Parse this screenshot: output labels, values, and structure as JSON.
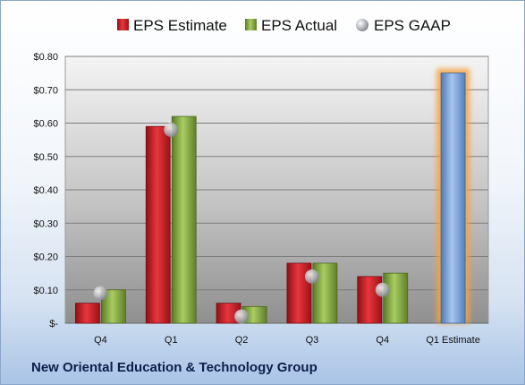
{
  "company_name": "New Oriental Education & Technology Group",
  "colors": {
    "estimate": "#d8262d",
    "actual": "#8cb04a",
    "gaap": "#b9bcc2",
    "forecast": "#7fa7d9",
    "forecast_glow": "#f5a341"
  },
  "chart_data": {
    "type": "bar",
    "title": "",
    "xlabel": "",
    "ylabel": "",
    "categories": [
      "Q4",
      "Q1",
      "Q2",
      "Q3",
      "Q4",
      "Q1 Estimate"
    ],
    "ylim": [
      0,
      0.8
    ],
    "yticks": [
      0,
      0.1,
      0.2,
      0.3,
      0.4,
      0.5,
      0.6,
      0.7,
      0.8
    ],
    "ytick_labels": [
      "$-",
      "$0.10",
      "$0.20",
      "$0.30",
      "$0.40",
      "$0.50",
      "$0.60",
      "$0.70",
      "$0.80"
    ],
    "grid": true,
    "legend_position": "top",
    "series": [
      {
        "name": "EPS Estimate",
        "kind": "bar",
        "values": [
          0.06,
          0.59,
          0.06,
          0.18,
          0.14,
          null
        ]
      },
      {
        "name": "EPS Actual",
        "kind": "bar",
        "values": [
          0.1,
          0.62,
          0.05,
          0.18,
          0.15,
          null
        ]
      },
      {
        "name": "EPS GAAP",
        "kind": "point",
        "values": [
          0.09,
          0.58,
          0.02,
          0.14,
          0.1,
          null
        ]
      }
    ],
    "forecast": {
      "category_index": 5,
      "value": 0.75
    }
  }
}
